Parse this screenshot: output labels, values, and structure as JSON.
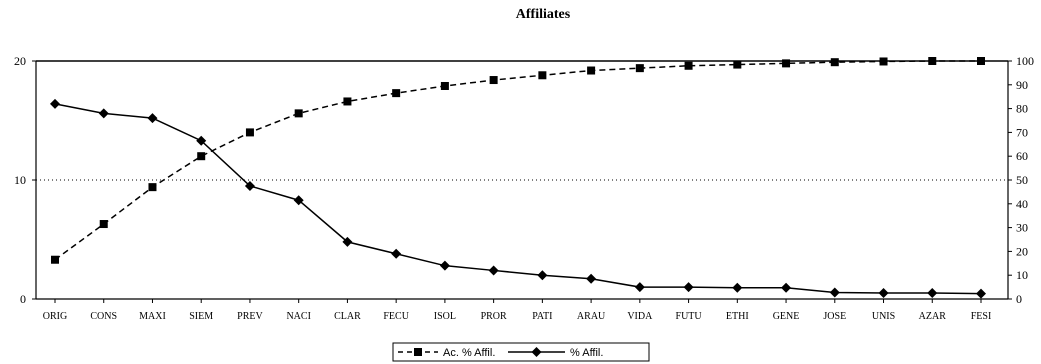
{
  "chart_data": {
    "type": "line",
    "title": "Affiliates",
    "categories": [
      "ORIG",
      "CONS",
      "MAXI",
      "SIEM",
      "PREV",
      "NACI",
      "CLAR",
      "FECU",
      "ISOL",
      "PROR",
      "PATI",
      "ARAU",
      "VIDA",
      "FUTU",
      "ETHI",
      "GENE",
      "JOSE",
      "UNIS",
      "AZAR",
      "FESI"
    ],
    "left_axis": {
      "ylim": [
        0,
        20
      ],
      "ticks": [
        "0",
        "10",
        "20"
      ]
    },
    "right_axis": {
      "ylim": [
        0,
        100
      ],
      "ticks": [
        "0",
        "10",
        "20",
        "30",
        "40",
        "50",
        "60",
        "70",
        "80",
        "90",
        "100"
      ]
    },
    "series": [
      {
        "name": "Ac. % Affil.",
        "axis": "right",
        "marker": "square",
        "line_style": "dashed",
        "values": [
          16.5,
          31.5,
          47,
          60,
          70,
          78,
          83,
          86.5,
          89.5,
          92,
          94,
          96,
          97,
          98,
          98.5,
          99,
          99.5,
          99.8,
          100,
          100
        ]
      },
      {
        "name": "% Affil.",
        "axis": "left",
        "marker": "diamond",
        "line_style": "solid",
        "values": [
          16.4,
          15.6,
          15.2,
          13.3,
          9.5,
          8.3,
          4.8,
          3.8,
          2.8,
          2.4,
          2.0,
          1.7,
          1.0,
          1.0,
          0.95,
          0.95,
          0.55,
          0.5,
          0.5,
          0.45
        ]
      }
    ],
    "grid": {
      "horizontal_dotted_at": 10
    },
    "legend": {
      "position": "bottom-center"
    }
  }
}
